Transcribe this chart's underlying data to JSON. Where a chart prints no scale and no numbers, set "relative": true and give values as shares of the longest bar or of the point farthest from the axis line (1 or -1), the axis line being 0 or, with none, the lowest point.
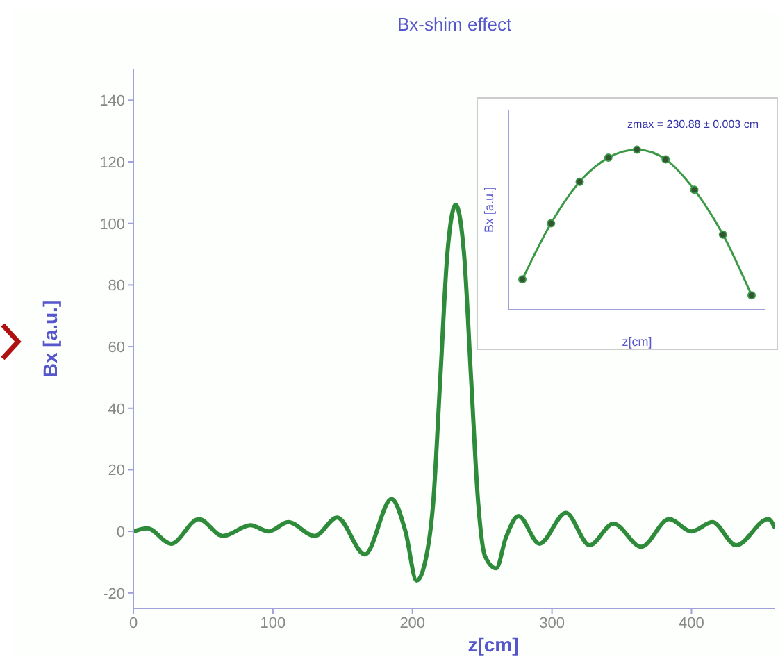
{
  "chart_data": [
    {
      "type": "line",
      "title": "Bx-shim effect",
      "xlabel": "z[cm]",
      "ylabel": "Bx [a.u.]",
      "xlim": [
        0,
        460
      ],
      "xticks": [
        0,
        100,
        200,
        300,
        400
      ],
      "ylim": [
        -25,
        150
      ],
      "yticks": [
        -20,
        0,
        20,
        40,
        60,
        80,
        100,
        120,
        140
      ],
      "grid": false,
      "legend": false,
      "marker": "none",
      "line_style": "solid",
      "x": [
        0,
        10,
        27,
        47,
        64,
        84,
        97,
        111,
        130,
        146,
        166,
        185,
        195,
        203,
        210,
        215,
        220,
        225,
        231,
        237,
        242,
        247,
        252,
        260,
        267,
        276,
        291,
        310,
        327,
        344,
        364,
        384,
        400,
        415,
        432,
        455,
        460
      ],
      "series": [
        {
          "color": "#2e8b3a",
          "values": [
            0,
            1,
            -4,
            4,
            -1.5,
            2,
            0,
            3,
            -1.5,
            4.5,
            -7.5,
            10.5,
            0,
            -16,
            -8,
            10,
            50,
            90,
            106,
            90,
            50,
            10,
            -8,
            -12,
            -2,
            5,
            -4,
            6,
            -4.5,
            2.5,
            -5,
            4,
            0,
            3,
            -4.5,
            4,
            1
          ]
        }
      ]
    },
    {
      "type": "line",
      "xlabel": "z[cm]",
      "ylabel": "Bx [a.u.]",
      "annotations": [
        "zmax = 230.88 ± 0.003 cm"
      ],
      "relative": true,
      "tick_labels": false,
      "grid": false,
      "legend": false,
      "marker": "circle",
      "line_style": "solid",
      "categories": [
        null,
        null,
        null,
        null,
        null,
        null,
        null,
        null,
        null
      ],
      "series": [
        {
          "color": "#3a9a45",
          "values": [
            0.19,
            0.54,
            0.8,
            0.95,
            1,
            0.94,
            0.75,
            0.47,
            0.09
          ]
        }
      ]
    }
  ]
}
